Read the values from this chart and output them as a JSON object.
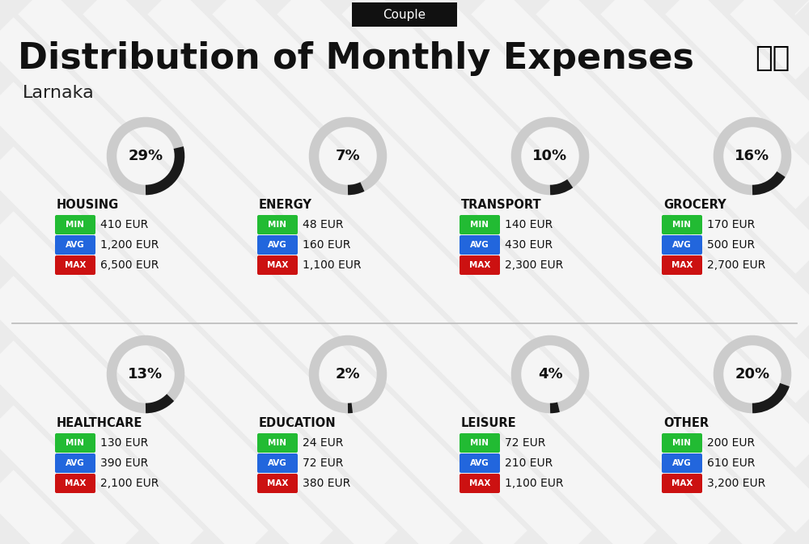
{
  "title": "Distribution of Monthly Expenses",
  "subtitle": "Couple",
  "location": "Larnaka",
  "bg_color": "#ebebeb",
  "categories": [
    {
      "name": "HOUSING",
      "pct": 29,
      "min_val": "410 EUR",
      "avg_val": "1,200 EUR",
      "max_val": "6,500 EUR",
      "row": 0,
      "col": 0
    },
    {
      "name": "ENERGY",
      "pct": 7,
      "min_val": "48 EUR",
      "avg_val": "160 EUR",
      "max_val": "1,100 EUR",
      "row": 0,
      "col": 1
    },
    {
      "name": "TRANSPORT",
      "pct": 10,
      "min_val": "140 EUR",
      "avg_val": "430 EUR",
      "max_val": "2,300 EUR",
      "row": 0,
      "col": 2
    },
    {
      "name": "GROCERY",
      "pct": 16,
      "min_val": "170 EUR",
      "avg_val": "500 EUR",
      "max_val": "2,700 EUR",
      "row": 0,
      "col": 3
    },
    {
      "name": "HEALTHCARE",
      "pct": 13,
      "min_val": "130 EUR",
      "avg_val": "390 EUR",
      "max_val": "2,100 EUR",
      "row": 1,
      "col": 0
    },
    {
      "name": "EDUCATION",
      "pct": 2,
      "min_val": "24 EUR",
      "avg_val": "72 EUR",
      "max_val": "380 EUR",
      "row": 1,
      "col": 1
    },
    {
      "name": "LEISURE",
      "pct": 4,
      "min_val": "72 EUR",
      "avg_val": "210 EUR",
      "max_val": "1,100 EUR",
      "row": 1,
      "col": 2
    },
    {
      "name": "OTHER",
      "pct": 20,
      "min_val": "200 EUR",
      "avg_val": "610 EUR",
      "max_val": "3,200 EUR",
      "row": 1,
      "col": 3
    }
  ],
  "min_color": "#22bb33",
  "avg_color": "#2266dd",
  "max_color": "#cc1111",
  "donut_fg": "#1a1a1a",
  "donut_bg": "#cccccc",
  "stripe_color": "#ffffff",
  "header_bg": "#111111",
  "header_text": "#ffffff",
  "title_color": "#111111",
  "location_color": "#222222",
  "cat_name_color": "#111111",
  "val_text_color": "#111111"
}
